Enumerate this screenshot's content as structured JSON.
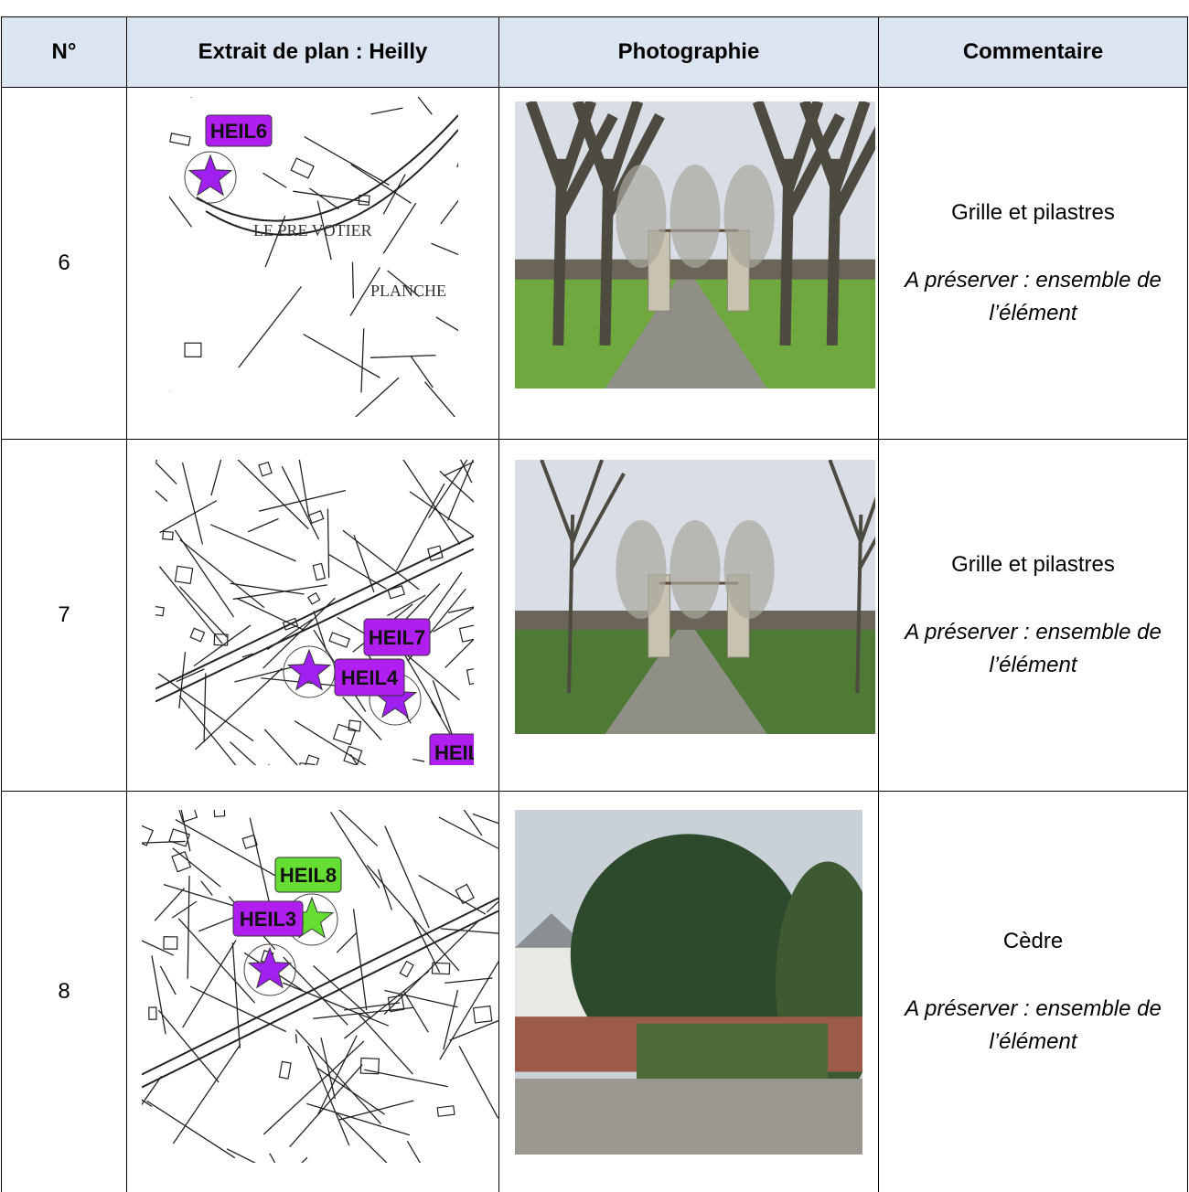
{
  "table": {
    "headers": [
      "N°",
      "Extrait de plan : Heilly",
      "Photographie",
      "Commentaire"
    ],
    "rows": [
      {
        "number": "6",
        "map_labels": [
          "HEIL6",
          "LE PRE VOTIER",
          "PLANCHE"
        ],
        "comment": "Grille et pilastres",
        "note": "A préserver : ensemble de l’élément"
      },
      {
        "number": "7",
        "map_labels": [
          "HEIL7",
          "HEIL4",
          "HEIL"
        ],
        "comment": "Grille et pilastres",
        "note": "A préserver : ensemble de l’élément"
      },
      {
        "number": "8",
        "map_labels": [
          "HEIL8",
          "HEIL3"
        ],
        "comment": "Cèdre",
        "note": "A préserver : ensemble de l’élément"
      }
    ]
  }
}
